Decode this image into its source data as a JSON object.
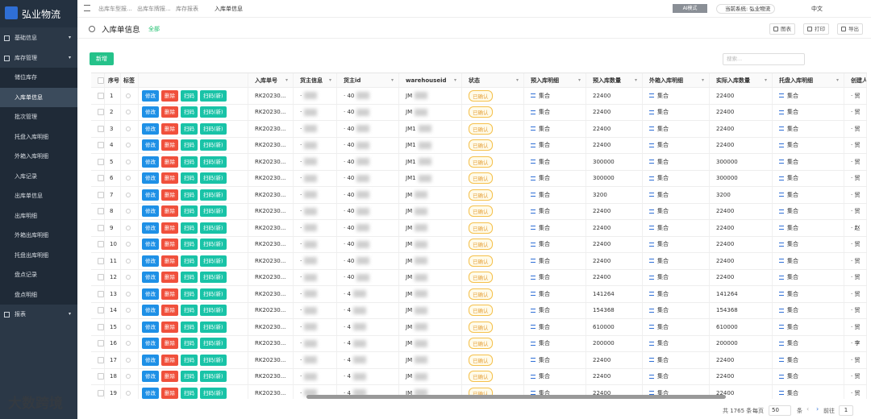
{
  "sidebar": {
    "logo": "弘业物流",
    "menu": [
      {
        "label": "基础信息"
      },
      {
        "label": "库存管理",
        "children": [
          "储位库存",
          "入库单信息",
          "批次管理",
          "托盘入库明细",
          "外箱入库明细",
          "入库记录",
          "出库单信息",
          "出库明细",
          "外箱出库明细",
          "托盘出库明细",
          "盘点记录",
          "盘点明细"
        ]
      },
      {
        "label": "报表"
      }
    ]
  },
  "topbar": {
    "breadcrumbs": [
      "出库车型报...",
      "出库车牌报...",
      "库存报表",
      "入库单信息"
    ],
    "ai_mode": "AI模式",
    "system": "当前系统: 弘业物流",
    "language": "中文"
  },
  "header": {
    "title": "入库单信息",
    "tag": "全部",
    "buttons": [
      "图表",
      "打印",
      "导出"
    ]
  },
  "toolbar": {
    "add": "新增",
    "search_placeholder": "搜索..."
  },
  "table": {
    "columns": [
      "序号",
      "标签",
      "入库单号",
      "货主信息",
      "货主id",
      "warehouseid",
      "状态",
      "预入库明细",
      "预入库数量",
      "外箱入库明细",
      "实际入库数量",
      "托盘入库明细",
      "创建人"
    ],
    "actions": [
      "修改",
      "删除",
      "扫码",
      "扫码(新)"
    ],
    "rows": [
      {
        "no": 1,
        "order_no": "RK20230...",
        "owner": "·",
        "owner_id": "· 40",
        "warehouse_id": "JM",
        "status": "已确认",
        "pre_detail": "集合",
        "pre_qty": 22400,
        "box_detail": "集合",
        "actual_qty": 22400,
        "pallet_detail": "集合",
        "creator": "· 贸"
      },
      {
        "no": 2,
        "order_no": "RK20230...",
        "owner": "·",
        "owner_id": "· 40",
        "warehouse_id": "JM",
        "status": "已确认",
        "pre_detail": "集合",
        "pre_qty": 22400,
        "box_detail": "集合",
        "actual_qty": 22400,
        "pallet_detail": "集合",
        "creator": "· 贸"
      },
      {
        "no": 3,
        "order_no": "RK20230...",
        "owner": "·",
        "owner_id": "· 40",
        "warehouse_id": "JM1",
        "status": "已确认",
        "pre_detail": "集合",
        "pre_qty": 22400,
        "box_detail": "集合",
        "actual_qty": 22400,
        "pallet_detail": "集合",
        "creator": "· 贸"
      },
      {
        "no": 4,
        "order_no": "RK20230...",
        "owner": "·",
        "owner_id": "· 40",
        "warehouse_id": "JM1",
        "status": "已确认",
        "pre_detail": "集合",
        "pre_qty": 22400,
        "box_detail": "集合",
        "actual_qty": 22400,
        "pallet_detail": "集合",
        "creator": "· 贸"
      },
      {
        "no": 5,
        "order_no": "RK20230...",
        "owner": "·",
        "owner_id": "· 40",
        "warehouse_id": "JM1",
        "status": "已确认",
        "pre_detail": "集合",
        "pre_qty": 300000,
        "box_detail": "集合",
        "actual_qty": 300000,
        "pallet_detail": "集合",
        "creator": "· 贸"
      },
      {
        "no": 6,
        "order_no": "RK20230...",
        "owner": "·",
        "owner_id": "· 40",
        "warehouse_id": "JM1",
        "status": "已确认",
        "pre_detail": "集合",
        "pre_qty": 300000,
        "box_detail": "集合",
        "actual_qty": 300000,
        "pallet_detail": "集合",
        "creator": "· 贸"
      },
      {
        "no": 7,
        "order_no": "RK20230...",
        "owner": "·",
        "owner_id": "· 40",
        "warehouse_id": "JM",
        "status": "已确认",
        "pre_detail": "集合",
        "pre_qty": 3200,
        "box_detail": "集合",
        "actual_qty": 3200,
        "pallet_detail": "集合",
        "creator": "· 贸"
      },
      {
        "no": 8,
        "order_no": "RK20230...",
        "owner": "·",
        "owner_id": "· 40",
        "warehouse_id": "JM",
        "status": "已确认",
        "pre_detail": "集合",
        "pre_qty": 22400,
        "box_detail": "集合",
        "actual_qty": 22400,
        "pallet_detail": "集合",
        "creator": "· 贸"
      },
      {
        "no": 9,
        "order_no": "RK20230...",
        "owner": "·",
        "owner_id": "· 40",
        "warehouse_id": "JM",
        "status": "已确认",
        "pre_detail": "集合",
        "pre_qty": 22400,
        "box_detail": "集合",
        "actual_qty": 22400,
        "pallet_detail": "集合",
        "creator": "· 赵"
      },
      {
        "no": 10,
        "order_no": "RK20230...",
        "owner": "·",
        "owner_id": "· 40",
        "warehouse_id": "JM",
        "status": "已确认",
        "pre_detail": "集合",
        "pre_qty": 22400,
        "box_detail": "集合",
        "actual_qty": 22400,
        "pallet_detail": "集合",
        "creator": "· 贸"
      },
      {
        "no": 11,
        "order_no": "RK20230...",
        "owner": "·",
        "owner_id": "· 40",
        "warehouse_id": "JM",
        "status": "已确认",
        "pre_detail": "集合",
        "pre_qty": 22400,
        "box_detail": "集合",
        "actual_qty": 22400,
        "pallet_detail": "集合",
        "creator": "· 贸"
      },
      {
        "no": 12,
        "order_no": "RK20230...",
        "owner": "·",
        "owner_id": "· 40",
        "warehouse_id": "JM",
        "status": "已确认",
        "pre_detail": "集合",
        "pre_qty": 22400,
        "box_detail": "集合",
        "actual_qty": 22400,
        "pallet_detail": "集合",
        "creator": "· 贸"
      },
      {
        "no": 13,
        "order_no": "RK20230...",
        "owner": "·",
        "owner_id": "· 4",
        "warehouse_id": "JM",
        "status": "已确认",
        "pre_detail": "集合",
        "pre_qty": 141264,
        "box_detail": "集合",
        "actual_qty": 141264,
        "pallet_detail": "集合",
        "creator": "· 贸"
      },
      {
        "no": 14,
        "order_no": "RK20230...",
        "owner": "·",
        "owner_id": "· 4",
        "warehouse_id": "JM",
        "status": "已确认",
        "pre_detail": "集合",
        "pre_qty": 154368,
        "box_detail": "集合",
        "actual_qty": 154368,
        "pallet_detail": "集合",
        "creator": "· 贸"
      },
      {
        "no": 15,
        "order_no": "RK20230...",
        "owner": "·",
        "owner_id": "· 4",
        "warehouse_id": "JM",
        "status": "已确认",
        "pre_detail": "集合",
        "pre_qty": 610000,
        "box_detail": "集合",
        "actual_qty": 610000,
        "pallet_detail": "集合",
        "creator": "· 贸"
      },
      {
        "no": 16,
        "order_no": "RK20230...",
        "owner": "·",
        "owner_id": "· 4",
        "warehouse_id": "JM",
        "status": "已确认",
        "pre_detail": "集合",
        "pre_qty": 200000,
        "box_detail": "集合",
        "actual_qty": 200000,
        "pallet_detail": "集合",
        "creator": "· 李"
      },
      {
        "no": 17,
        "order_no": "RK20230...",
        "owner": "·",
        "owner_id": "· 4",
        "warehouse_id": "JM",
        "status": "已确认",
        "pre_detail": "集合",
        "pre_qty": 22400,
        "box_detail": "集合",
        "actual_qty": 22400,
        "pallet_detail": "集合",
        "creator": "· 贸"
      },
      {
        "no": 18,
        "order_no": "RK20230...",
        "owner": "·",
        "owner_id": "· 4",
        "warehouse_id": "JM",
        "status": "已确认",
        "pre_detail": "集合",
        "pre_qty": 22400,
        "box_detail": "集合",
        "actual_qty": 22400,
        "pallet_detail": "集合",
        "creator": "· 贸"
      },
      {
        "no": 19,
        "order_no": "RK20230...",
        "owner": "·",
        "owner_id": "· 4",
        "warehouse_id": "JM",
        "status": "已确认",
        "pre_detail": "集合",
        "pre_qty": 22400,
        "box_detail": "集合",
        "actual_qty": 22400,
        "pallet_detail": "集合",
        "creator": "· 贸"
      }
    ]
  },
  "pagination": {
    "total": "共 1765 条",
    "per_page_label": "每页",
    "page_size": "50",
    "unit": "条",
    "goto": "前往",
    "page": "1"
  },
  "watermark": "大数跨境"
}
